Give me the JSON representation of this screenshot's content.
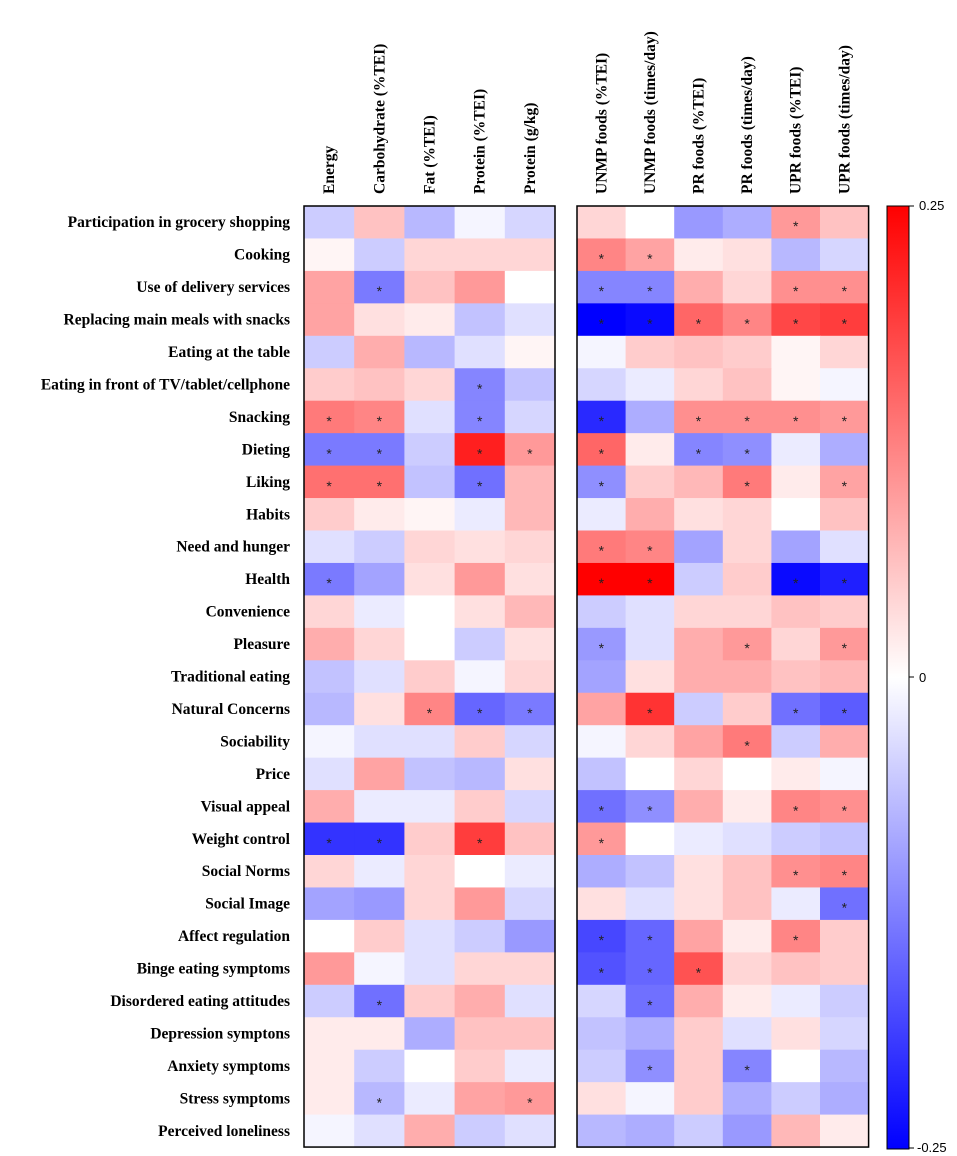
{
  "chart_data": {
    "type": "heatmap",
    "title": "",
    "row_labels": [
      "Participation in grocery shopping",
      "Cooking",
      "Use of delivery services",
      "Replacing main meals with snacks",
      "Eating at the table",
      "Eating in front of TV/tablet/cellphone",
      "Snacking",
      "Dieting",
      "Liking",
      "Habits",
      "Need and hunger",
      "Health",
      "Convenience",
      "Pleasure",
      "Traditional eating",
      "Natural Concerns",
      "Sociability",
      "Price",
      "Visual appeal",
      "Weight control",
      "Social Norms",
      "Social Image",
      "Affect regulation",
      "Binge eating symptoms",
      "Disordered eating attitudes",
      "Depression symptons",
      "Anxiety symptoms",
      "Stress symptoms",
      "Perceived loneliness"
    ],
    "panels": [
      {
        "columns": [
          "Energy",
          "Carbohydrate (%TEI)",
          "Fat (%TEI)",
          "Protein (%TEI)",
          "Protein (g/kg)"
        ],
        "values": [
          [
            -0.05,
            0.06,
            -0.07,
            -0.01,
            -0.04
          ],
          [
            0.01,
            -0.05,
            0.04,
            0.04,
            0.04
          ],
          [
            0.09,
            -0.13,
            0.06,
            0.1,
            0.0
          ],
          [
            0.09,
            0.03,
            0.02,
            -0.06,
            -0.03
          ],
          [
            -0.05,
            0.08,
            -0.07,
            -0.03,
            0.01
          ],
          [
            0.05,
            0.06,
            0.04,
            -0.12,
            -0.06
          ],
          [
            0.13,
            0.12,
            -0.03,
            -0.12,
            -0.04
          ],
          [
            -0.13,
            -0.13,
            -0.05,
            0.22,
            0.1
          ],
          [
            0.14,
            0.14,
            -0.06,
            -0.14,
            0.07
          ],
          [
            0.05,
            0.02,
            0.01,
            -0.02,
            0.07
          ],
          [
            -0.03,
            -0.05,
            0.04,
            0.03,
            0.04
          ],
          [
            -0.13,
            -0.09,
            0.03,
            0.1,
            0.03
          ],
          [
            0.04,
            -0.02,
            0.0,
            0.03,
            0.07
          ],
          [
            0.08,
            0.04,
            0.0,
            -0.05,
            0.03
          ],
          [
            -0.06,
            -0.03,
            0.05,
            -0.01,
            0.04
          ],
          [
            -0.07,
            0.03,
            0.12,
            -0.15,
            -0.13
          ],
          [
            -0.01,
            -0.03,
            -0.03,
            0.05,
            -0.04
          ],
          [
            -0.03,
            0.09,
            -0.06,
            -0.07,
            0.03
          ],
          [
            0.08,
            -0.02,
            -0.02,
            0.05,
            -0.04
          ],
          [
            -0.2,
            -0.2,
            0.05,
            0.19,
            0.06
          ],
          [
            0.04,
            -0.02,
            0.04,
            0.0,
            -0.02
          ],
          [
            -0.09,
            -0.1,
            0.04,
            0.1,
            -0.04
          ],
          [
            0.0,
            0.05,
            -0.03,
            -0.05,
            -0.1
          ],
          [
            0.1,
            -0.01,
            -0.03,
            0.04,
            0.04
          ],
          [
            -0.05,
            -0.14,
            0.05,
            0.08,
            -0.03
          ],
          [
            0.02,
            0.02,
            -0.08,
            0.06,
            0.06
          ],
          [
            0.02,
            -0.05,
            0.0,
            0.05,
            -0.02
          ],
          [
            0.02,
            -0.07,
            -0.02,
            0.09,
            0.1
          ],
          [
            -0.01,
            -0.03,
            0.08,
            -0.05,
            -0.03
          ]
        ],
        "significant": [
          [
            false,
            false,
            false,
            false,
            false
          ],
          [
            false,
            false,
            false,
            false,
            false
          ],
          [
            false,
            true,
            false,
            false,
            false
          ],
          [
            false,
            false,
            false,
            false,
            false
          ],
          [
            false,
            false,
            false,
            false,
            false
          ],
          [
            false,
            false,
            false,
            true,
            false
          ],
          [
            true,
            true,
            false,
            true,
            false
          ],
          [
            true,
            true,
            false,
            true,
            true
          ],
          [
            true,
            true,
            false,
            true,
            false
          ],
          [
            false,
            false,
            false,
            false,
            false
          ],
          [
            false,
            false,
            false,
            false,
            false
          ],
          [
            true,
            false,
            false,
            false,
            false
          ],
          [
            false,
            false,
            false,
            false,
            false
          ],
          [
            false,
            false,
            false,
            false,
            false
          ],
          [
            false,
            false,
            false,
            false,
            false
          ],
          [
            false,
            false,
            true,
            true,
            true
          ],
          [
            false,
            false,
            false,
            false,
            false
          ],
          [
            false,
            false,
            false,
            false,
            false
          ],
          [
            false,
            false,
            false,
            false,
            false
          ],
          [
            true,
            true,
            false,
            true,
            false
          ],
          [
            false,
            false,
            false,
            false,
            false
          ],
          [
            false,
            false,
            false,
            false,
            false
          ],
          [
            false,
            false,
            false,
            false,
            false
          ],
          [
            false,
            false,
            false,
            false,
            false
          ],
          [
            false,
            true,
            false,
            false,
            false
          ],
          [
            false,
            false,
            false,
            false,
            false
          ],
          [
            false,
            false,
            false,
            false,
            false
          ],
          [
            false,
            true,
            false,
            false,
            true
          ],
          [
            false,
            false,
            false,
            false,
            false
          ]
        ]
      },
      {
        "columns": [
          "UNMP foods (%TEI)",
          "UNMP foods (times/day)",
          "PR foods (%TEI)",
          "PR foods (times/day)",
          "UPR foods (%TEI)",
          "UPR foods (times/day)"
        ],
        "values": [
          [
            0.04,
            0.0,
            -0.1,
            -0.08,
            0.1,
            0.06
          ],
          [
            0.12,
            0.09,
            0.02,
            0.03,
            -0.07,
            -0.04
          ],
          [
            -0.12,
            -0.12,
            0.08,
            0.04,
            0.11,
            0.11
          ],
          [
            -0.25,
            -0.24,
            0.15,
            0.12,
            0.18,
            0.19
          ],
          [
            -0.01,
            0.05,
            0.06,
            0.05,
            0.01,
            0.04
          ],
          [
            -0.04,
            -0.02,
            0.04,
            0.06,
            0.01,
            -0.01
          ],
          [
            -0.21,
            -0.08,
            0.11,
            0.11,
            0.11,
            0.1
          ],
          [
            0.15,
            0.02,
            -0.12,
            -0.11,
            -0.02,
            -0.08
          ],
          [
            -0.11,
            0.05,
            0.07,
            0.13,
            0.02,
            0.09
          ],
          [
            -0.02,
            0.08,
            0.03,
            0.04,
            0.0,
            0.06
          ],
          [
            0.13,
            0.12,
            -0.09,
            0.04,
            -0.09,
            -0.03
          ],
          [
            0.25,
            0.25,
            -0.05,
            0.05,
            -0.24,
            -0.22
          ],
          [
            -0.05,
            -0.03,
            0.04,
            0.04,
            0.06,
            0.05
          ],
          [
            -0.1,
            -0.03,
            0.08,
            0.1,
            0.04,
            0.1
          ],
          [
            -0.09,
            0.03,
            0.08,
            0.08,
            0.06,
            0.07
          ],
          [
            0.09,
            0.2,
            -0.05,
            0.05,
            -0.14,
            -0.16
          ],
          [
            -0.01,
            0.04,
            0.09,
            0.13,
            -0.05,
            0.08
          ],
          [
            -0.06,
            0.0,
            0.04,
            0.0,
            0.02,
            -0.01
          ],
          [
            -0.14,
            -0.11,
            0.08,
            0.02,
            0.12,
            0.11
          ],
          [
            0.1,
            0.0,
            -0.02,
            -0.03,
            -0.05,
            -0.06
          ],
          [
            -0.08,
            -0.06,
            0.03,
            0.06,
            0.11,
            0.12
          ],
          [
            0.03,
            -0.03,
            0.03,
            0.06,
            -0.02,
            -0.14
          ],
          [
            -0.18,
            -0.15,
            0.09,
            0.02,
            0.12,
            0.05
          ],
          [
            -0.17,
            -0.15,
            0.17,
            0.04,
            0.06,
            0.05
          ],
          [
            -0.04,
            -0.14,
            0.08,
            0.02,
            -0.02,
            -0.05
          ],
          [
            -0.06,
            -0.08,
            0.05,
            -0.03,
            0.03,
            -0.04
          ],
          [
            -0.05,
            -0.11,
            0.05,
            -0.12,
            0.0,
            -0.07
          ],
          [
            0.03,
            -0.01,
            0.05,
            -0.08,
            -0.05,
            -0.08
          ],
          [
            -0.07,
            -0.08,
            -0.05,
            -0.1,
            0.07,
            0.02
          ]
        ],
        "significant": [
          [
            false,
            false,
            false,
            false,
            true,
            false
          ],
          [
            true,
            true,
            false,
            false,
            false,
            false
          ],
          [
            true,
            true,
            false,
            false,
            true,
            true
          ],
          [
            true,
            true,
            true,
            true,
            true,
            true
          ],
          [
            false,
            false,
            false,
            false,
            false,
            false
          ],
          [
            false,
            false,
            false,
            false,
            false,
            false
          ],
          [
            true,
            false,
            true,
            true,
            true,
            true
          ],
          [
            true,
            false,
            true,
            true,
            false,
            false
          ],
          [
            true,
            false,
            false,
            true,
            false,
            true
          ],
          [
            false,
            false,
            false,
            false,
            false,
            false
          ],
          [
            true,
            true,
            false,
            false,
            false,
            false
          ],
          [
            true,
            true,
            false,
            false,
            true,
            true
          ],
          [
            false,
            false,
            false,
            false,
            false,
            false
          ],
          [
            true,
            false,
            false,
            true,
            false,
            true
          ],
          [
            false,
            false,
            false,
            false,
            false,
            false
          ],
          [
            false,
            true,
            false,
            false,
            true,
            true
          ],
          [
            false,
            false,
            false,
            true,
            false,
            false
          ],
          [
            false,
            false,
            false,
            false,
            false,
            false
          ],
          [
            true,
            true,
            false,
            false,
            true,
            true
          ],
          [
            true,
            false,
            false,
            false,
            false,
            false
          ],
          [
            false,
            false,
            false,
            false,
            true,
            true
          ],
          [
            false,
            false,
            false,
            false,
            false,
            true
          ],
          [
            true,
            true,
            false,
            false,
            true,
            false
          ],
          [
            true,
            true,
            true,
            false,
            false,
            false
          ],
          [
            false,
            true,
            false,
            false,
            false,
            false
          ],
          [
            false,
            false,
            false,
            false,
            false,
            false
          ],
          [
            false,
            true,
            false,
            true,
            false,
            false
          ],
          [
            false,
            false,
            false,
            false,
            false,
            false
          ],
          [
            false,
            false,
            false,
            false,
            false,
            false
          ]
        ]
      }
    ],
    "colorbar": {
      "min": -0.25,
      "max": 0.25,
      "ticks": [
        "0.25",
        "0",
        "-0.25"
      ],
      "low_color": "#0000ff",
      "mid_color": "#ffffff",
      "high_color": "#ff0000"
    },
    "significance_marker": "*"
  }
}
